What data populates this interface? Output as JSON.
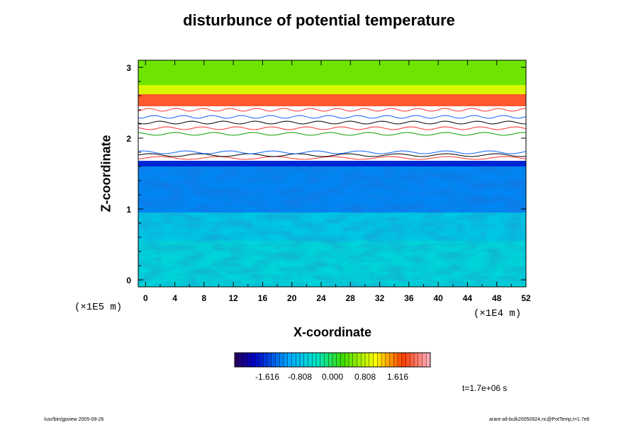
{
  "chart_data": {
    "type": "heatmap",
    "title": "disturbunce of potential temperature",
    "xlabel": "X-coordinate",
    "ylabel": "Z-coordinate",
    "x_unit": "(×1E4 m)",
    "y_unit": "(×1E5 m)",
    "xlim": [
      -1,
      52
    ],
    "ylim": [
      -0.1,
      3.1
    ],
    "x_ticks": [
      0,
      4,
      8,
      12,
      16,
      20,
      24,
      28,
      32,
      36,
      40,
      44,
      48,
      52
    ],
    "y_ticks": [
      0,
      1,
      2,
      3
    ],
    "x_tick_labels": [
      "0",
      "4",
      "8",
      "12",
      "16",
      "20",
      "24",
      "28",
      "32",
      "36",
      "40",
      "44",
      "48",
      "52"
    ],
    "y_tick_labels": [
      "0",
      "1",
      "2",
      "3"
    ],
    "colorbar": {
      "min": -2.424,
      "max": 2.424,
      "levels": 48,
      "tick_values": [
        -1.616,
        -0.808,
        0.0,
        0.808,
        1.616
      ],
      "tick_labels": [
        "-1.616",
        "-0.808",
        "0.000",
        "0.808",
        "1.616"
      ]
    },
    "field_bands": [
      {
        "z_from": -0.1,
        "z_to": 0.55,
        "value": -0.6
      },
      {
        "z_from": 0.55,
        "z_to": 0.95,
        "value": -0.75
      },
      {
        "z_from": 0.95,
        "z_to": 1.6,
        "value": -1.25
      },
      {
        "z_from": 1.6,
        "z_to": 1.68,
        "value": -1.75
      },
      {
        "z_from": 2.45,
        "z_to": 2.62,
        "value": 1.9
      },
      {
        "z_from": 2.62,
        "z_to": 2.75,
        "value": 0.9
      },
      {
        "z_from": 2.75,
        "z_to": 3.1,
        "value": 0.45
      }
    ],
    "grid": false,
    "legend": "colorbar-bottom"
  },
  "annotation": {
    "time": "t=1.7e+06 s"
  },
  "footer": {
    "left": "/usr/bin/gpview 2005-09-26",
    "right": "arare-all-bulk20050924.nc@PotTemp,t=1.7e6"
  }
}
